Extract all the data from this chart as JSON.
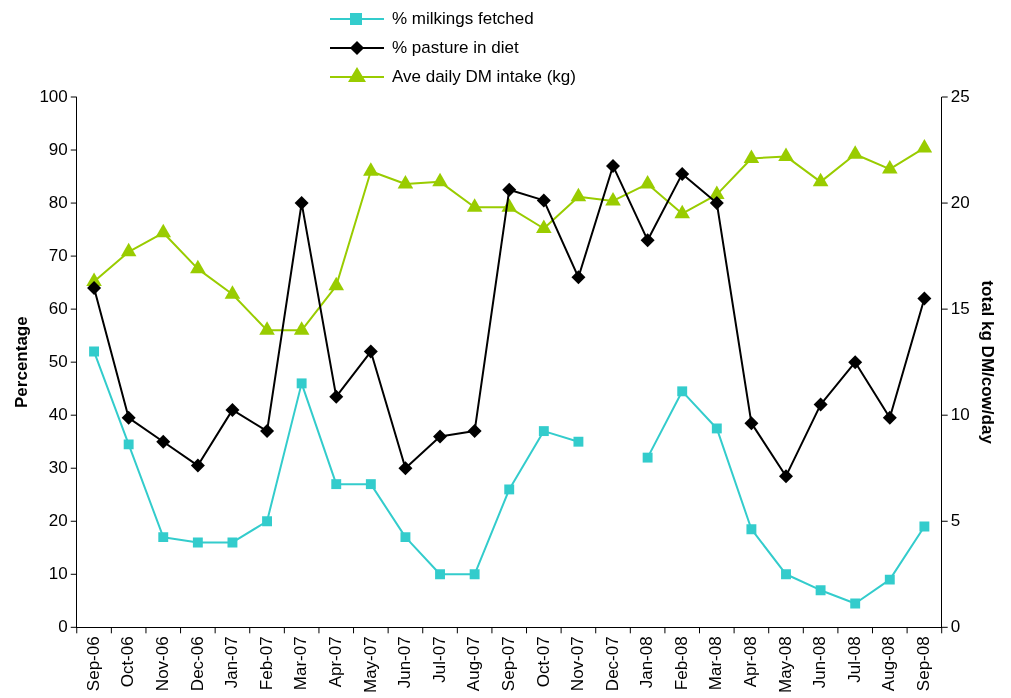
{
  "chart_data": {
    "type": "line",
    "ylabel": "Percentage",
    "y2label": "total kg DM/cow/day",
    "categories": [
      "Sep-06",
      "Oct-06",
      "Nov-06",
      "Dec-06",
      "Jan-07",
      "Feb-07",
      "Mar-07",
      "Apr-07",
      "May-07",
      "Jun-07",
      "Jul-07",
      "Aug-07",
      "Sep-07",
      "Oct-07",
      "Nov-07",
      "Dec-07",
      "Jan-08",
      "Feb-08",
      "Mar-08",
      "Apr-08",
      "May-08",
      "Jun-08",
      "Jul-08",
      "Aug-08",
      "Sep-08"
    ],
    "series": [
      {
        "name": "% milkings fetched",
        "color": "#33cccc",
        "marker": "square",
        "values": [
          52,
          34.5,
          17,
          16,
          16,
          20,
          46,
          27,
          27,
          17,
          10,
          10,
          26,
          37,
          35,
          null,
          32,
          44.5,
          37.5,
          18.5,
          10,
          7,
          4.5,
          9,
          19
        ]
      },
      {
        "name": "% pasture in diet",
        "color": "#000000",
        "marker": "diamond",
        "values": [
          64,
          39.5,
          35,
          30.5,
          41,
          37,
          80,
          43.5,
          52,
          30,
          36,
          37,
          82.5,
          80.5,
          66,
          87,
          73,
          85.5,
          80,
          38.5,
          28.5,
          42,
          50,
          39.5,
          62
        ]
      },
      {
        "name": "Ave daily DM intake (kg)",
        "color": "#99cc00",
        "marker": "triangle",
        "axis": "y2",
        "values": [
          16.3,
          17.7,
          18.6,
          16.9,
          15.7,
          14,
          14,
          16.1,
          21.5,
          20.9,
          21,
          19.8,
          19.8,
          18.8,
          20.3,
          20.1,
          20.9,
          19.5,
          20.4,
          22.1,
          22.2,
          21,
          22.3,
          21.6,
          22.6
        ]
      }
    ],
    "ylim": [
      0,
      100
    ],
    "yticks": [
      0,
      10,
      20,
      30,
      40,
      50,
      60,
      70,
      80,
      90,
      100
    ],
    "y2lim": [
      0,
      25
    ],
    "y2ticks": [
      0,
      5,
      10,
      15,
      20,
      25
    ],
    "grid": false,
    "legend": "top",
    "line_style": "solid"
  }
}
